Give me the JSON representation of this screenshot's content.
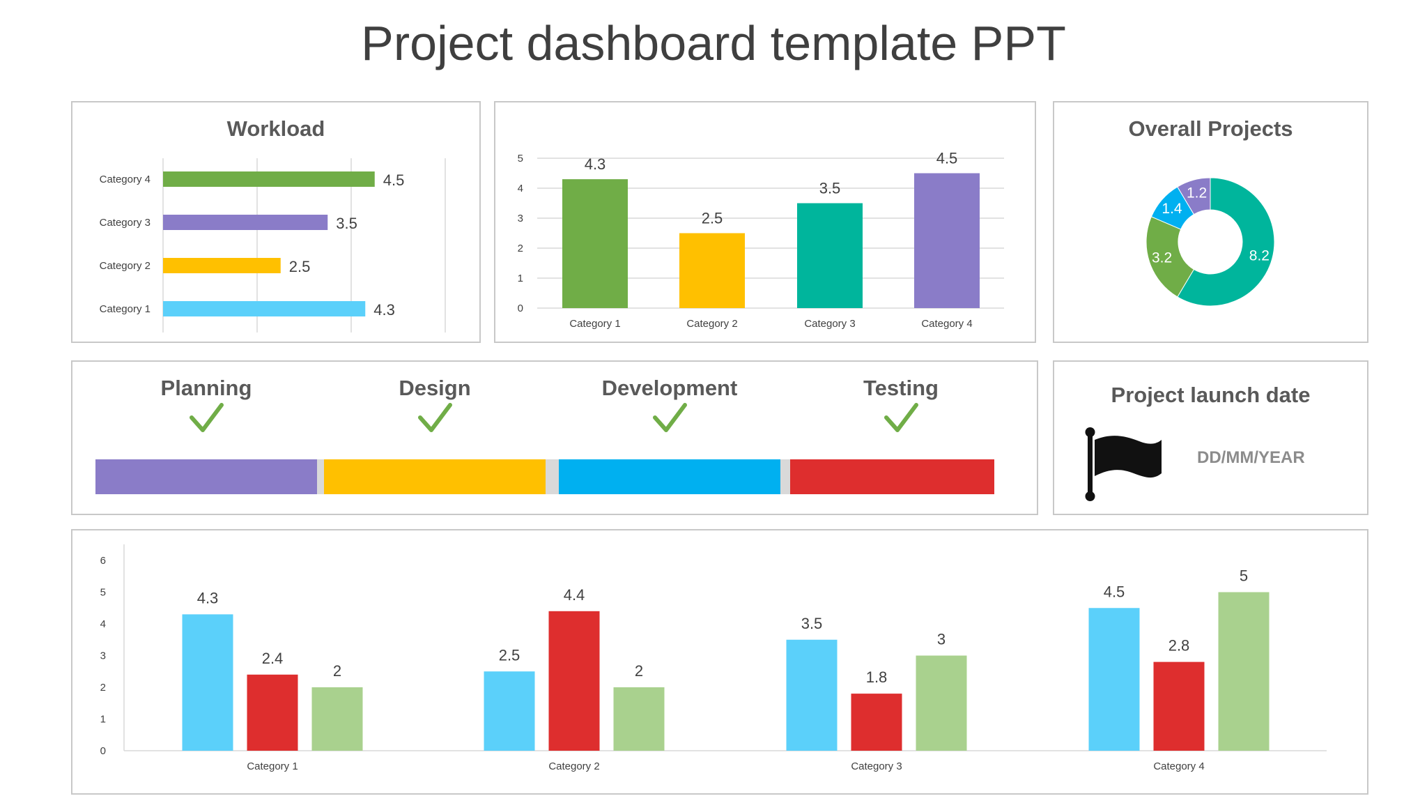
{
  "title": "Project dashboard template PPT",
  "workload": {
    "title": "Workload",
    "chart_data": {
      "type": "bar",
      "orientation": "horizontal",
      "title": "Workload",
      "categories": [
        "Category 4",
        "Category 3",
        "Category 2",
        "Category 1"
      ],
      "values": [
        4.5,
        3.5,
        2.5,
        4.3
      ],
      "colors": [
        "#70ad47",
        "#8a7cc8",
        "#ffc000",
        "#5bd0fa"
      ],
      "xlim": [
        0,
        6
      ],
      "grid": true
    }
  },
  "columns": {
    "chart_data": {
      "type": "bar",
      "categories": [
        "Category 1",
        "Category 2",
        "Category 3",
        "Category 4"
      ],
      "values": [
        4.3,
        2.5,
        3.5,
        4.5
      ],
      "colors": [
        "#70ad47",
        "#ffc000",
        "#00b59c",
        "#8a7cc8"
      ],
      "ylim": [
        0,
        5
      ],
      "yticks": [
        "0",
        "1",
        "2",
        "3",
        "4",
        "5"
      ],
      "grid": true
    }
  },
  "overall": {
    "title": "Overall Projects",
    "chart_data": {
      "type": "pie",
      "donut": true,
      "values": [
        8.2,
        3.2,
        1.4,
        1.2
      ],
      "labels": [
        "8.2",
        "3.2",
        "1.4",
        "1.2"
      ],
      "colors": [
        "#00b59c",
        "#70ad47",
        "#00b0f0",
        "#8a7cc8"
      ]
    }
  },
  "phases": {
    "items": [
      {
        "label": "Planning",
        "color": "#8a7cc8"
      },
      {
        "label": "Design",
        "color": "#ffc000"
      },
      {
        "label": "Development",
        "color": "#00b0f0"
      },
      {
        "label": "Testing",
        "color": "#de2e2e"
      }
    ],
    "separator_color": "#d9d9d9",
    "check_color": "#70ad47"
  },
  "launch": {
    "title": "Project launch date",
    "date": "DD/MM/YEAR",
    "icon": "flag-icon"
  },
  "grouped": {
    "chart_data": {
      "type": "bar",
      "categories": [
        "Category 1",
        "Category 2",
        "Category 3",
        "Category 4"
      ],
      "series": [
        {
          "values": [
            4.3,
            2.5,
            3.5,
            4.5
          ],
          "color": "#5bd0fa"
        },
        {
          "values": [
            2.4,
            4.4,
            1.8,
            2.8
          ],
          "color": "#de2e2e"
        },
        {
          "values": [
            2,
            2,
            3,
            5
          ],
          "color": "#a9d18e"
        }
      ],
      "ylim": [
        0,
        6
      ],
      "yticks": [
        "0",
        "1",
        "2",
        "3",
        "4",
        "5",
        "6"
      ],
      "grid": false
    }
  }
}
